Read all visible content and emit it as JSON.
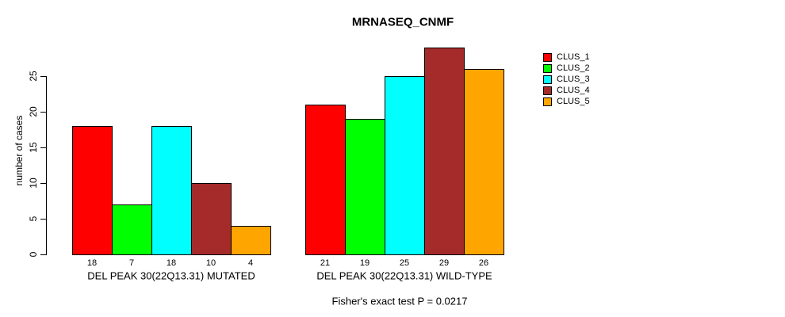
{
  "title": "MRNASEQ_CNMF",
  "footer": "Fisher's exact test P = 0.0217",
  "colors": {
    "background": "#ffffff",
    "axis": "#000000",
    "bar_border": "#000000"
  },
  "chart_data": {
    "type": "bar",
    "title": "MRNASEQ_CNMF",
    "xlabel": "",
    "ylabel": "number of cases",
    "yticks": [
      0,
      5,
      10,
      15,
      20,
      25
    ],
    "ylim": [
      0,
      29
    ],
    "grid": false,
    "legend_position": "top-right",
    "bar_value_labels_shown": true,
    "categories": [
      "DEL PEAK 30(22Q13.31) MUTATED",
      "DEL PEAK 30(22Q13.31) WILD-TYPE"
    ],
    "series": [
      {
        "name": "CLUS_1",
        "color": "#FF0000",
        "values": [
          18,
          21
        ]
      },
      {
        "name": "CLUS_2",
        "color": "#00FF00",
        "values": [
          7,
          19
        ]
      },
      {
        "name": "CLUS_3",
        "color": "#00FFFF",
        "values": [
          18,
          25
        ]
      },
      {
        "name": "CLUS_4",
        "color": "#A52A2A",
        "values": [
          10,
          29
        ]
      },
      {
        "name": "CLUS_5",
        "color": "#FFA500",
        "values": [
          4,
          26
        ]
      }
    ],
    "annotation": "Fisher's exact test P = 0.0217"
  }
}
